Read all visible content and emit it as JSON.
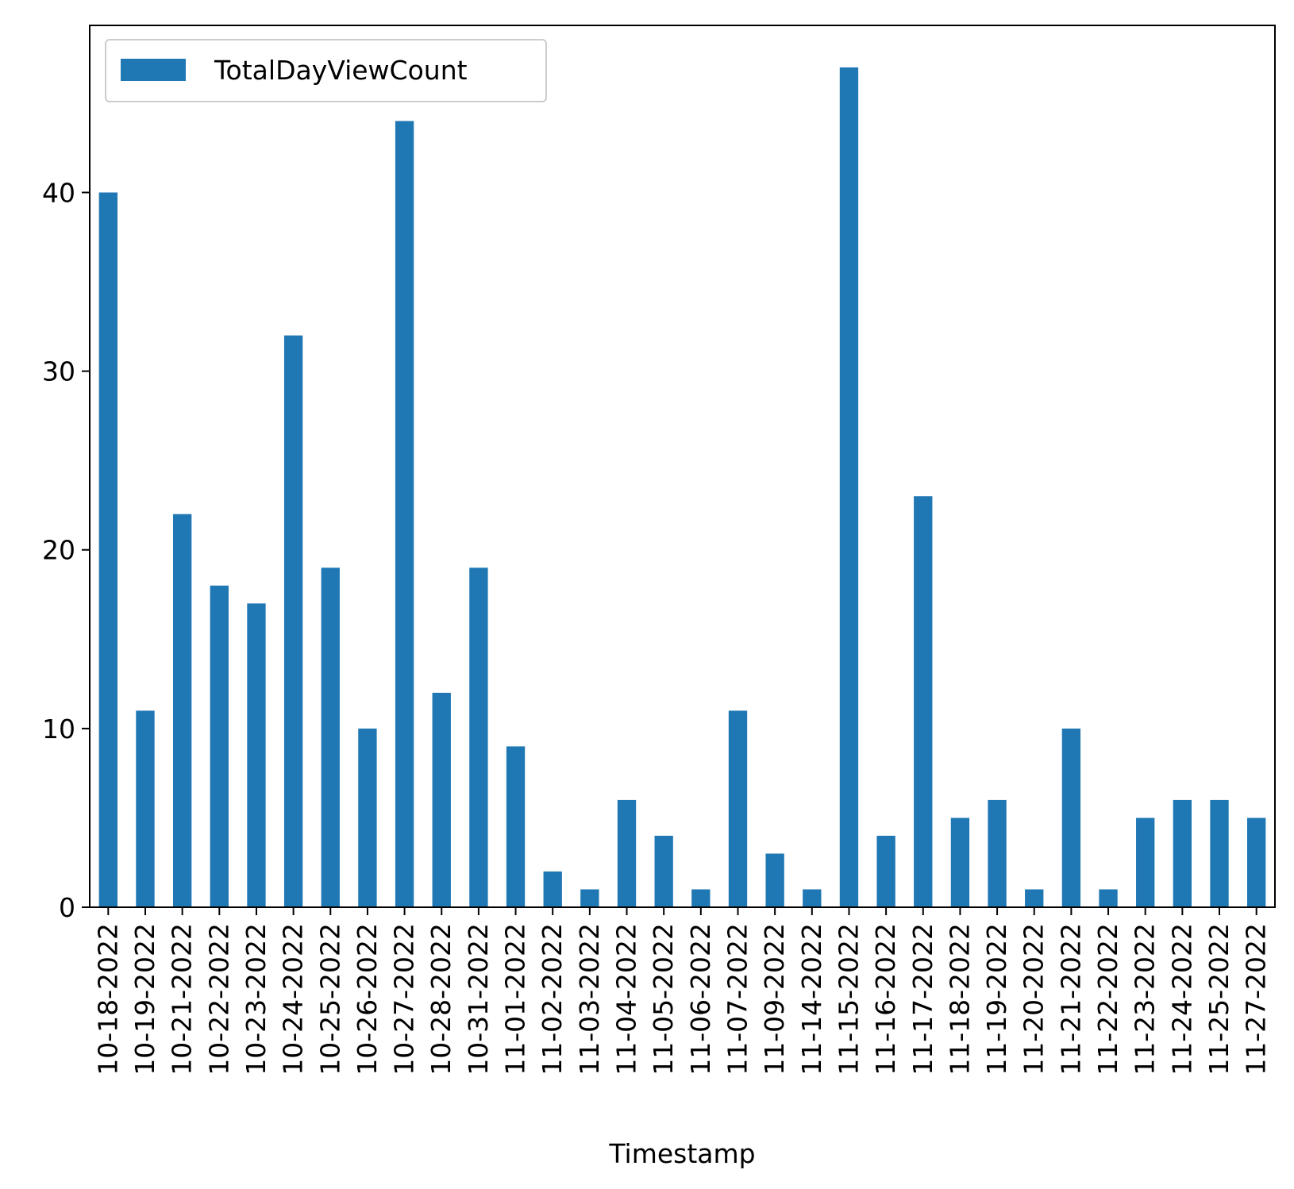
{
  "chart_data": {
    "type": "bar",
    "xlabel": "Timestamp",
    "ylabel": "",
    "ylim": [
      0,
      49.35
    ],
    "yticks": [
      0,
      10,
      20,
      30,
      40
    ],
    "legend_position": "top-left",
    "grid": false,
    "categories": [
      "10-18-2022",
      "10-19-2022",
      "10-21-2022",
      "10-22-2022",
      "10-23-2022",
      "10-24-2022",
      "10-25-2022",
      "10-26-2022",
      "10-27-2022",
      "10-28-2022",
      "10-31-2022",
      "11-01-2022",
      "11-02-2022",
      "11-03-2022",
      "11-04-2022",
      "11-05-2022",
      "11-06-2022",
      "11-07-2022",
      "11-09-2022",
      "11-14-2022",
      "11-15-2022",
      "11-16-2022",
      "11-17-2022",
      "11-18-2022",
      "11-19-2022",
      "11-20-2022",
      "11-21-2022",
      "11-22-2022",
      "11-23-2022",
      "11-24-2022",
      "11-25-2022",
      "11-27-2022"
    ],
    "series": [
      {
        "name": "TotalDayViewCount",
        "color": "#1f77b4",
        "values": [
          40,
          11,
          22,
          18,
          17,
          32,
          19,
          10,
          44,
          12,
          19,
          9,
          2,
          1,
          6,
          4,
          1,
          11,
          3,
          1,
          47,
          4,
          23,
          5,
          6,
          1,
          10,
          1,
          5,
          6,
          6,
          5
        ]
      }
    ]
  }
}
